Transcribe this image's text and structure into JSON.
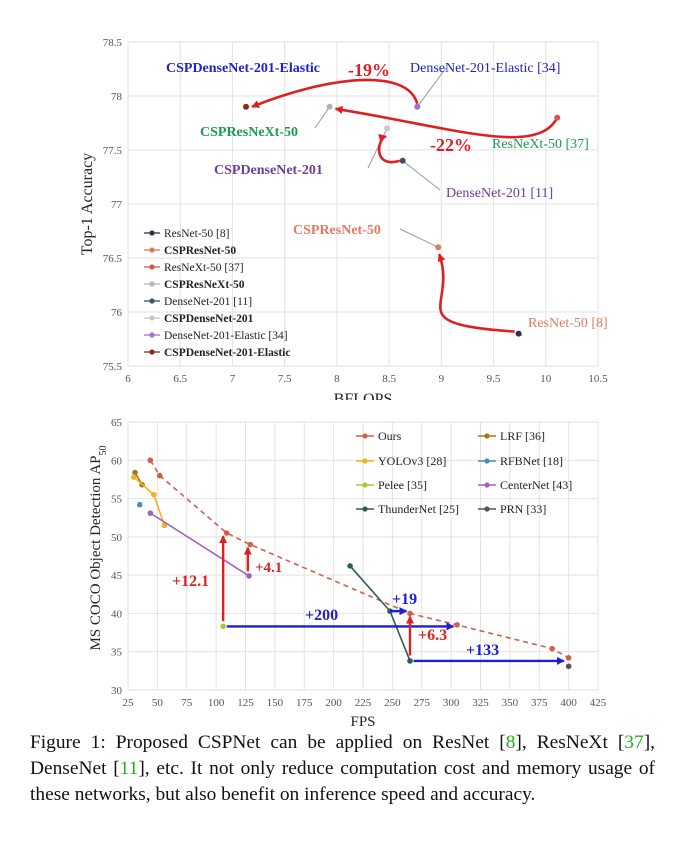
{
  "chart_data": [
    {
      "type": "scatter",
      "xlabel": "BFLOPS",
      "ylabel": "Top-1 Accuracy",
      "xlim": [
        6,
        10.5
      ],
      "ylim": [
        75.5,
        78.5
      ],
      "xticks": [
        "6",
        "6.5",
        "7",
        "7.5",
        "8",
        "8.5",
        "9",
        "9.5",
        "10",
        "10.5"
      ],
      "yticks": [
        "75.5",
        "76",
        "76.5",
        "77",
        "77.5",
        "78",
        "78.5"
      ],
      "grid": true,
      "legend_position": "bottom-left",
      "series": [
        {
          "name": "ResNet-50 [8]",
          "color": "#3d2b4f",
          "x": 9.74,
          "y": 75.8
        },
        {
          "name": "CSPResNet-50",
          "color": "#e07a60",
          "x": 8.97,
          "y": 76.6
        },
        {
          "name": "ResNeXt-50 [37]",
          "color": "#d9534f",
          "x": 10.11,
          "y": 77.8
        },
        {
          "name": "CSPResNeXt-50",
          "color": "#b4b4b4",
          "x": 7.93,
          "y": 77.9
        },
        {
          "name": "DenseNet-201 [11]",
          "color": "#35556b",
          "x": 8.63,
          "y": 77.4
        },
        {
          "name": "CSPDenseNet-201",
          "color": "#c7c7c7",
          "x": 8.48,
          "y": 77.7
        },
        {
          "name": "DenseNet-201-Elastic [34]",
          "color": "#9c72c2",
          "x": 8.77,
          "y": 77.9
        },
        {
          "name": "CSPDenseNet-201-Elastic",
          "color": "#8b2a1f",
          "x": 7.13,
          "y": 77.9
        }
      ],
      "annotations": [
        {
          "text": "CSPDenseNet-201-Elastic",
          "color": "#1f1fd0"
        },
        {
          "text": "-19%",
          "color": "#e02020"
        },
        {
          "text": "DenseNet-201-Elastic [34]",
          "color": "#1f1fd0"
        },
        {
          "text": "CSPResNeXt-50",
          "color": "#1a9a50"
        },
        {
          "text": "-22%",
          "color": "#e02020"
        },
        {
          "text": "ResNeXt-50 [37]",
          "color": "#1a9a50"
        },
        {
          "text": "CSPDenseNet-201",
          "color": "#6a3d9a"
        },
        {
          "text": "DenseNet-201 [11]",
          "color": "#6a3d9a"
        },
        {
          "text": "CSPResNet-50",
          "color": "#e07a60"
        },
        {
          "text": "ResNet-50 [8]",
          "color": "#e07a60"
        }
      ]
    },
    {
      "type": "line",
      "xlabel": "FPS",
      "ylabel": "MS COCO Object Detection AP",
      "ylabel_sub": "50",
      "xlim": [
        25,
        425
      ],
      "ylim": [
        30,
        65
      ],
      "xticks": [
        "25",
        "50",
        "75",
        "100",
        "125",
        "150",
        "175",
        "200",
        "225",
        "250",
        "275",
        "300",
        "325",
        "350",
        "375",
        "400",
        "425"
      ],
      "yticks": [
        "30",
        "35",
        "40",
        "45",
        "50",
        "55",
        "60",
        "65"
      ],
      "grid": true,
      "legend_position": "top-right",
      "series": [
        {
          "name": "Ours",
          "color": "#d35f4a",
          "dashed": true,
          "points": [
            [
              44,
              60
            ],
            [
              52,
              58
            ],
            [
              109,
              50.5
            ],
            [
              129,
              49
            ],
            [
              265,
              40
            ],
            [
              305,
              38.5
            ],
            [
              386,
              35.4
            ],
            [
              400,
              34.2
            ]
          ]
        },
        {
          "name": "LRF [36]",
          "color": "#a27a1d",
          "points": [
            [
              31,
              58.4
            ],
            [
              37,
              56.8
            ]
          ]
        },
        {
          "name": "YOLOv3 [28]",
          "color": "#f0b323",
          "points": [
            [
              30,
              57.8
            ],
            [
              47,
              55.5
            ],
            [
              56,
              51.5
            ]
          ]
        },
        {
          "name": "RFBNet [18]",
          "color": "#4a8fb0",
          "points": [
            [
              35,
              54.2
            ]
          ]
        },
        {
          "name": "Pelee [35]",
          "color": "#a8c83c",
          "points": [
            [
              106,
              38.3
            ]
          ]
        },
        {
          "name": "CenterNet [43]",
          "color": "#a461b3",
          "points": [
            [
              44,
              53.1
            ],
            [
              128,
              44.9
            ]
          ]
        },
        {
          "name": "ThunderNet [25]",
          "color": "#2f5a5a",
          "points": [
            [
              214,
              46.2
            ],
            [
              248,
              40.3
            ],
            [
              265,
              33.8
            ]
          ]
        },
        {
          "name": "PRN [33]",
          "color": "#555555",
          "points": [
            [
              400,
              33.1
            ]
          ]
        }
      ],
      "annotations": [
        {
          "text": "+12.1",
          "color": "#e02020"
        },
        {
          "text": "+4.1",
          "color": "#e02020"
        },
        {
          "text": "+200",
          "color": "#1f1fd0"
        },
        {
          "text": "+19",
          "color": "#1f1fd0"
        },
        {
          "text": "+6.3",
          "color": "#e02020"
        },
        {
          "text": "+133",
          "color": "#1f1fd0"
        }
      ]
    }
  ],
  "caption": {
    "part1": "Figure 1:  Proposed CSPNet can be applied on ResNet [",
    "cite1": "8",
    "part2": "], ResNeXt [",
    "cite2": "37",
    "part3": "], DenseNet [",
    "cite3": "11",
    "part4": "], etc.  It not only reduce computation cost and memory usage of these networks, but also benefit on inference speed and accuracy."
  }
}
